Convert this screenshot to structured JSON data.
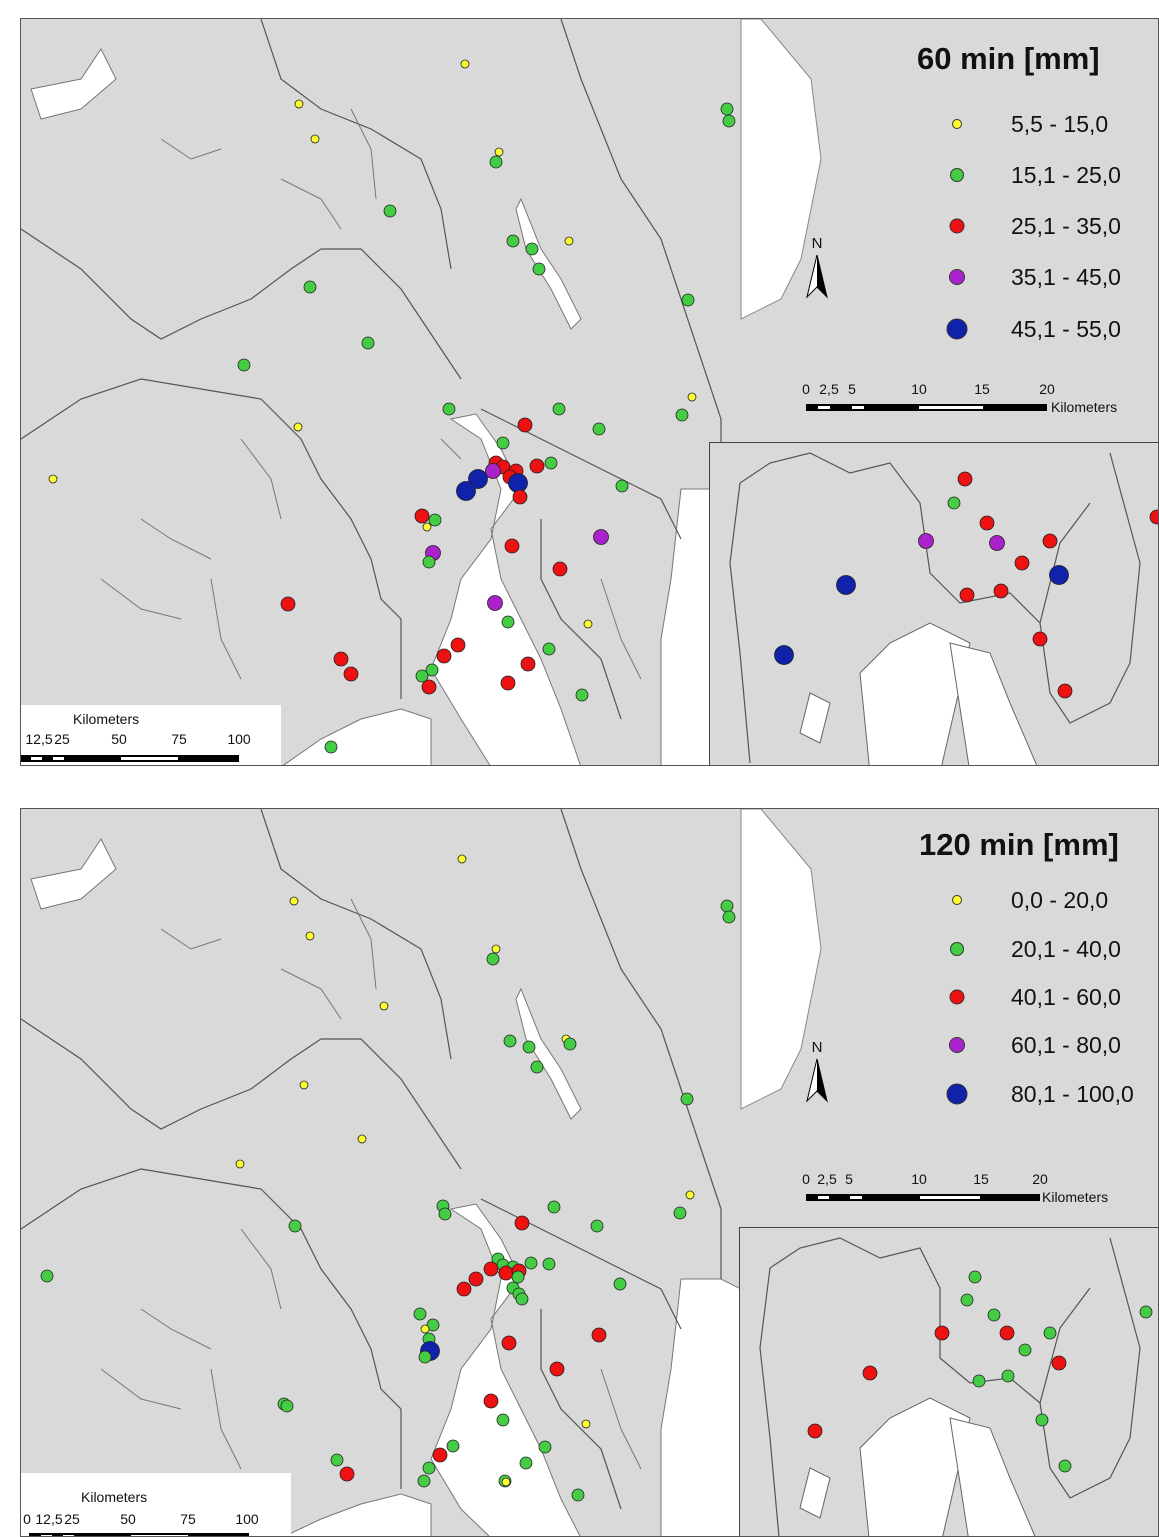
{
  "colors": {
    "land": "#d9d9d9",
    "water": "#ffffff",
    "border": "#555555",
    "yellow": "#ffff33",
    "green": "#44cc44",
    "red": "#ee1111",
    "purple": "#aa22cc",
    "blue": "#1122aa"
  },
  "maps": [
    {
      "legend_title": "60 min [mm]",
      "legend": [
        {
          "label": "5,5 - 15,0",
          "class": "yellow"
        },
        {
          "label": "15,1 - 25,0",
          "class": "green"
        },
        {
          "label": "25,1 - 35,0",
          "class": "red"
        },
        {
          "label": "35,1 - 45,0",
          "class": "purple"
        },
        {
          "label": "45,1 - 55,0",
          "class": "blue"
        }
      ],
      "north_label": "N",
      "scale_main": {
        "unit": "Kilometers",
        "ticks": [
          "0",
          "12,5",
          "25",
          "50",
          "75",
          "100"
        ]
      },
      "scale_inset": {
        "unit": "Kilometers",
        "ticks": [
          "0",
          "2,5",
          "5",
          "10",
          "15",
          "20"
        ]
      }
    },
    {
      "legend_title": "120 min [mm]",
      "legend": [
        {
          "label": "0,0 - 20,0",
          "class": "yellow"
        },
        {
          "label": "20,1 - 40,0",
          "class": "green"
        },
        {
          "label": "40,1 - 60,0",
          "class": "red"
        },
        {
          "label": "60,1 - 80,0",
          "class": "purple"
        },
        {
          "label": "80,1 - 100,0",
          "class": "blue"
        }
      ],
      "north_label": "N",
      "scale_main": {
        "unit": "Kilometers",
        "ticks": [
          "0",
          "12,5",
          "25",
          "50",
          "75",
          "100"
        ]
      },
      "scale_inset": {
        "unit": "Kilometers",
        "ticks": [
          "0",
          "2,5",
          "5",
          "10",
          "15",
          "20"
        ]
      }
    }
  ]
}
